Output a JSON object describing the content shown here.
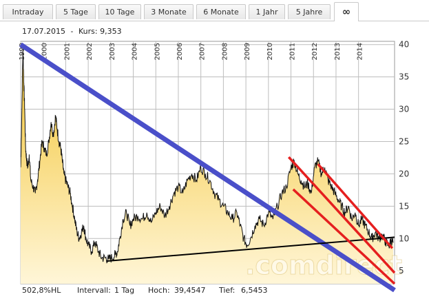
{
  "tabs": [
    {
      "label": "Intraday"
    },
    {
      "label": "5 Tage"
    },
    {
      "label": "10 Tage"
    },
    {
      "label": "3 Monate"
    },
    {
      "label": "6 Monate"
    },
    {
      "label": "1 Jahr"
    },
    {
      "label": "5 Jahre"
    },
    {
      "label": "∞",
      "active": true
    }
  ],
  "info": {
    "date": "17.07.2015",
    "separator": "-",
    "price_label": "Kurs:",
    "price": "9,353"
  },
  "footer": {
    "change": "502,8%HL",
    "interval_label": "Intervall:",
    "interval": "1 Tag",
    "high_label": "Hoch:",
    "high": "39,4547",
    "low_label": "Tief:",
    "low": "6,5453"
  },
  "watermark": ".comdirect",
  "colors": {
    "area_top": "#f5c842",
    "area_bottom": "#fff6d8",
    "price_line": "#111111",
    "trend_blue": "#4a4fc9",
    "trend_red": "#e51f1f",
    "trend_black": "#000000"
  },
  "chart_data": {
    "type": "area",
    "x_tick_labels": [
      "1999",
      "2000",
      "2001",
      "2002",
      "2003",
      "2004",
      "2005",
      "2006",
      "2007",
      "2008",
      "2009",
      "2010",
      "2011",
      "2012",
      "2013",
      "2014"
    ],
    "y_tick_labels": [
      "5",
      "10",
      "15",
      "20",
      "25",
      "30",
      "35",
      "40"
    ],
    "ylim": [
      3,
      40.5
    ],
    "xlim": [
      1999.0,
      2015.6
    ],
    "grid": true,
    "series": [
      {
        "x": [
          1999.0,
          1999.04,
          1999.1,
          1999.14,
          1999.18,
          1999.22,
          1999.27,
          1999.32,
          1999.38,
          1999.45,
          1999.55,
          1999.65,
          1999.75,
          1999.85,
          1999.95,
          2000.05,
          2000.15,
          2000.25,
          2000.35,
          2000.45,
          2000.55,
          2000.62,
          2000.7,
          2000.78,
          2000.85,
          2000.92,
          2001.0,
          2001.1,
          2001.2,
          2001.3,
          2001.4,
          2001.5,
          2001.6,
          2001.7,
          2001.8,
          2001.9,
          2002.0,
          2002.15,
          2002.3,
          2002.45,
          2002.6,
          2002.75,
          2002.9,
          2003.05,
          2003.2,
          2003.3,
          2003.4,
          2003.55,
          2003.7,
          2003.85,
          2004.0,
          2004.2,
          2004.4,
          2004.6,
          2004.8,
          2005.0,
          2005.2,
          2005.4,
          2005.6,
          2005.8,
          2006.0,
          2006.2,
          2006.4,
          2006.6,
          2006.8,
          2007.0,
          2007.2,
          2007.4,
          2007.6,
          2007.8,
          2008.0,
          2008.2,
          2008.4,
          2008.6,
          2008.75,
          2008.9,
          2009.05,
          2009.2,
          2009.4,
          2009.6,
          2009.8,
          2010.0,
          2010.2,
          2010.4,
          2010.6,
          2010.8,
          2011.0,
          2011.15,
          2011.3,
          2011.45,
          2011.6,
          2011.75,
          2011.9,
          2012.05,
          2012.2,
          2012.35,
          2012.5,
          2012.65,
          2012.8,
          2012.95,
          2013.1,
          2013.25,
          2013.4,
          2013.55,
          2013.7,
          2013.85,
          2014.0,
          2014.15,
          2014.3,
          2014.45,
          2014.6,
          2014.75,
          2014.9,
          2015.05,
          2015.2,
          2015.35,
          2015.45,
          2015.54
        ],
        "values": [
          21,
          27,
          39.5,
          34,
          30,
          24,
          22,
          21,
          23,
          19,
          18,
          17,
          19,
          22,
          25,
          24,
          23,
          25,
          28,
          26,
          29,
          27,
          25,
          24,
          22,
          20,
          19,
          18,
          17,
          15,
          13,
          11,
          10,
          11,
          12,
          10,
          9,
          8,
          9.5,
          8,
          7,
          7,
          6.8,
          7,
          7.5,
          8,
          10,
          13,
          14,
          12,
          13,
          13.5,
          13,
          14,
          12.5,
          14,
          15,
          13.5,
          15,
          17,
          18,
          17,
          19,
          20,
          19,
          21,
          20,
          19,
          17,
          16,
          15,
          14,
          13,
          14,
          12,
          10,
          9,
          10,
          12,
          13,
          12,
          14,
          13,
          15,
          17,
          18,
          21,
          22,
          20,
          19,
          18,
          18.5,
          17,
          21,
          22,
          20,
          21,
          19,
          18,
          17,
          16,
          15,
          14,
          15,
          13,
          14,
          12,
          13,
          12,
          11,
          10,
          11,
          10,
          10.5,
          9.5,
          8.8,
          9.8,
          9.35
        ]
      }
    ],
    "trendlines": [
      {
        "color": "blue",
        "from": [
          1999.0,
          40.0
        ],
        "to": [
          2015.6,
          2.0
        ]
      },
      {
        "color": "black",
        "from": [
          2002.8,
          6.5
        ],
        "to": [
          2015.6,
          10.2
        ]
      },
      {
        "color": "red",
        "from": [
          2010.9,
          22.6
        ],
        "to": [
          2015.6,
          4.7
        ]
      },
      {
        "color": "red",
        "from": [
          2011.1,
          17.6
        ],
        "to": [
          2015.6,
          3.0
        ]
      },
      {
        "color": "red",
        "from": [
          2012.2,
          21.5
        ],
        "to": [
          2015.5,
          8.5
        ]
      }
    ]
  }
}
